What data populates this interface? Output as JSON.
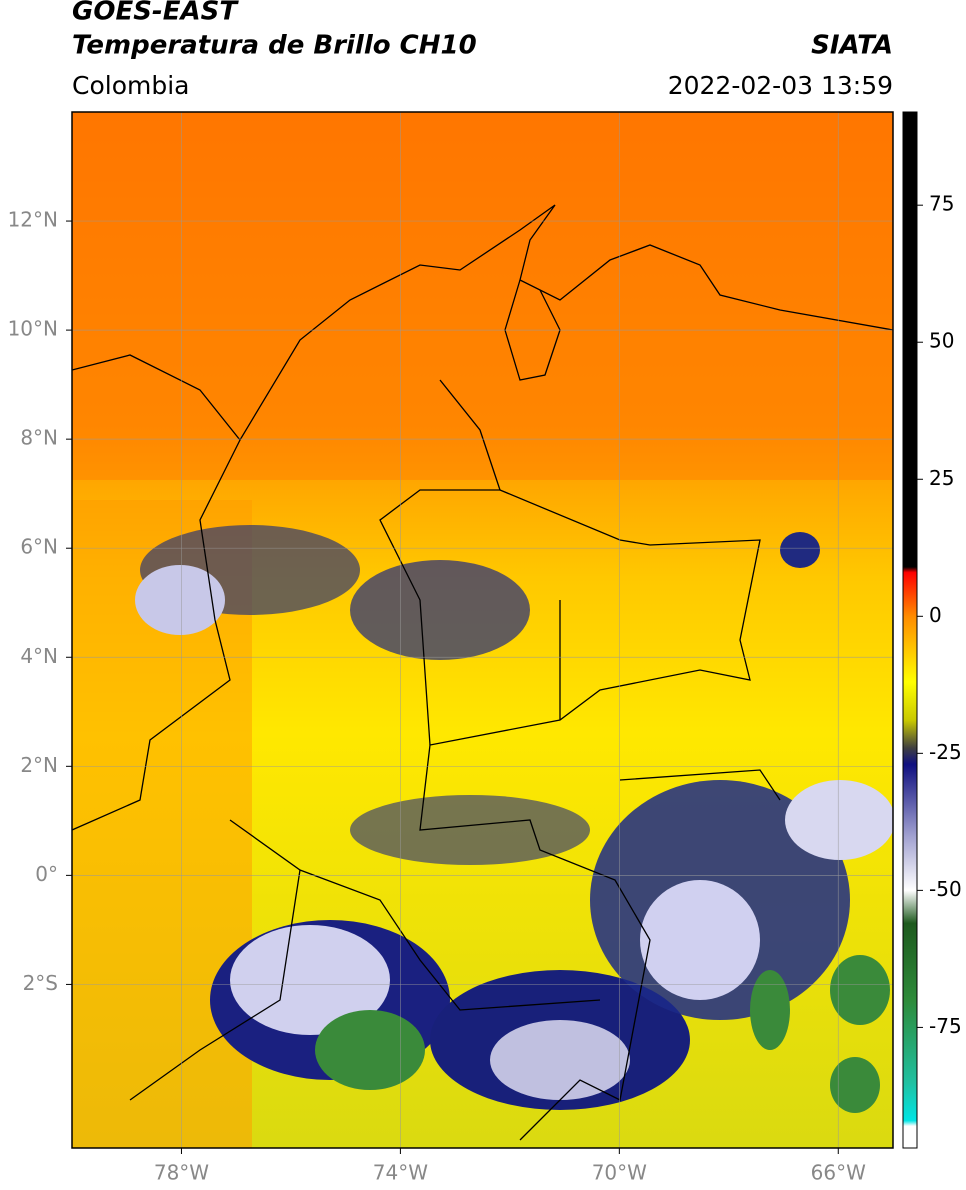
{
  "map": {
    "title": "GOES-EAST",
    "subtitle": "Temperatura de Brillo CH10",
    "region": "Colombia",
    "source": "SIATA",
    "datetime": "2022-02-03 13:59",
    "xlim": [
      -80,
      -65
    ],
    "ylim": [
      -5,
      14
    ],
    "xticks": [
      {
        "value": -78,
        "label": "78°W"
      },
      {
        "value": -74,
        "label": "74°W"
      },
      {
        "value": -70,
        "label": "70°W"
      },
      {
        "value": -66,
        "label": "66°W"
      }
    ],
    "yticks": [
      {
        "value": 12,
        "label": "12°N"
      },
      {
        "value": 10,
        "label": "10°N"
      },
      {
        "value": 8,
        "label": "8°N"
      },
      {
        "value": 6,
        "label": "6°N"
      },
      {
        "value": 4,
        "label": "4°N"
      },
      {
        "value": 2,
        "label": "2°N"
      },
      {
        "value": 0,
        "label": "0°"
      },
      {
        "value": -2,
        "label": "2°S"
      }
    ],
    "grid": true,
    "colorbar": {
      "clim": [
        -97,
        92
      ],
      "ticks": [
        75,
        50,
        25,
        0,
        -25,
        -50,
        -75
      ],
      "colormap": [
        {
          "value": -97,
          "color": "#ffffff"
        },
        {
          "value": -93,
          "color": "#ffffff"
        },
        {
          "value": -92,
          "color": "#00e5e5"
        },
        {
          "value": -85,
          "color": "#20c0a0"
        },
        {
          "value": -70,
          "color": "#2e8b3a"
        },
        {
          "value": -56,
          "color": "#1e5a1e"
        },
        {
          "value": -50,
          "color": "#ffffff"
        },
        {
          "value": -40,
          "color": "#a0a0d0"
        },
        {
          "value": -27,
          "color": "#101080"
        },
        {
          "value": -24,
          "color": "#404040"
        },
        {
          "value": -19,
          "color": "#c8c800"
        },
        {
          "value": -12,
          "color": "#ffff00"
        },
        {
          "value": 0,
          "color": "#ff8c00"
        },
        {
          "value": 8,
          "color": "#ff0000"
        },
        {
          "value": 9,
          "color": "#000000"
        },
        {
          "value": 92,
          "color": "#000000"
        }
      ]
    }
  }
}
